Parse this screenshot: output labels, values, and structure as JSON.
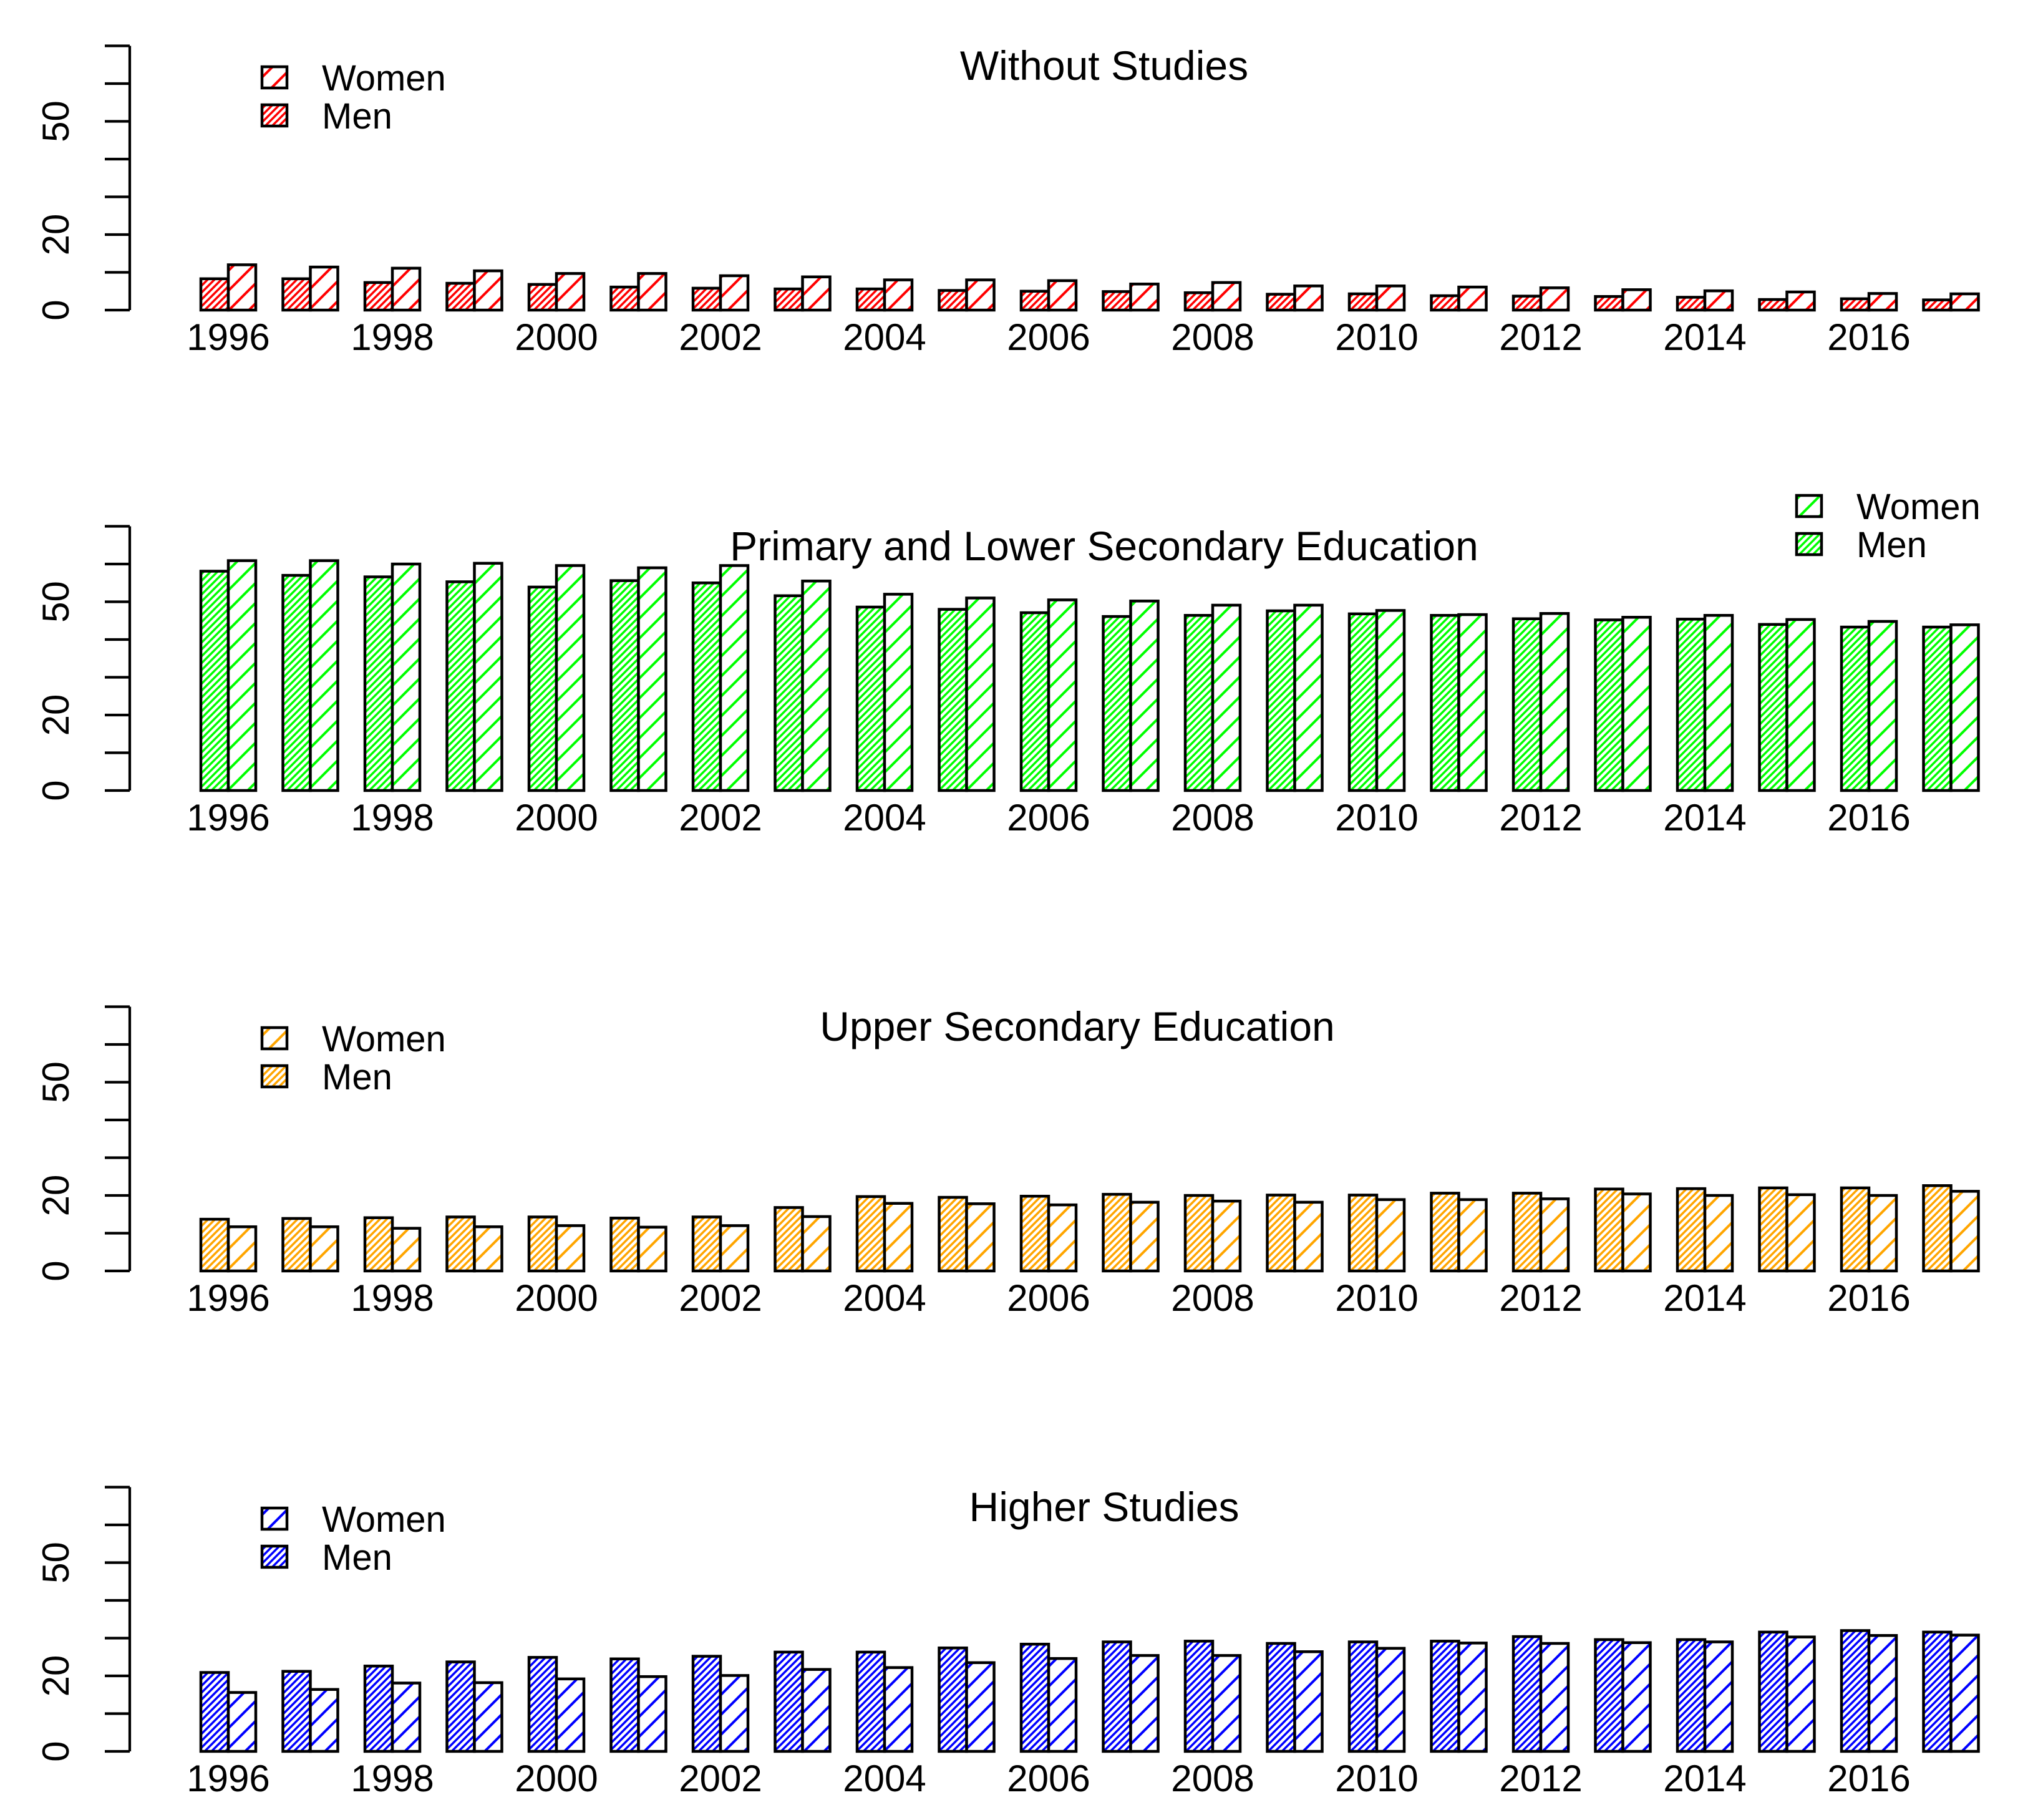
{
  "chart_data": [
    {
      "type": "bar",
      "title": "Without Studies",
      "fill_color": "#FF0000",
      "legend_position": "top-left",
      "categories": [
        1996,
        1997,
        1998,
        1999,
        2000,
        2001,
        2002,
        2003,
        2004,
        2005,
        2006,
        2007,
        2008,
        2009,
        2010,
        2011,
        2012,
        2013,
        2014,
        2015,
        2016,
        2017
      ],
      "x_tick_labels": [
        "1996",
        "1998",
        "2000",
        "2002",
        "2004",
        "2006",
        "2008",
        "2010",
        "2012",
        "2014",
        "2016"
      ],
      "y_tick_labels": [
        "0",
        "20",
        "50"
      ],
      "ylim": [
        0,
        70
      ],
      "series": [
        {
          "name": "Men",
          "values": [
            8.3,
            8.3,
            7.3,
            7.1,
            6.8,
            6.1,
            5.8,
            5.6,
            5.6,
            5.2,
            5.0,
            4.9,
            4.6,
            4.2,
            4.3,
            3.8,
            3.7,
            3.6,
            3.4,
            2.8,
            3.0,
            2.7
          ]
        },
        {
          "name": "Women",
          "values": [
            12.0,
            11.4,
            11.1,
            10.4,
            9.7,
            9.7,
            9.1,
            8.8,
            8.0,
            8.0,
            7.8,
            6.9,
            7.3,
            6.4,
            6.4,
            6.1,
            5.9,
            5.4,
            5.1,
            4.8,
            4.4,
            4.3
          ]
        }
      ],
      "legend": [
        "Women",
        "Men"
      ]
    },
    {
      "type": "bar",
      "title": "Primary and Lower Secondary Education",
      "fill_color": "#00FF00",
      "legend_position": "top-right",
      "categories": [
        1996,
        1997,
        1998,
        1999,
        2000,
        2001,
        2002,
        2003,
        2004,
        2005,
        2006,
        2007,
        2008,
        2009,
        2010,
        2011,
        2012,
        2013,
        2014,
        2015,
        2016,
        2017
      ],
      "x_tick_labels": [
        "1996",
        "1998",
        "2000",
        "2002",
        "2004",
        "2006",
        "2008",
        "2010",
        "2012",
        "2014",
        "2016"
      ],
      "y_tick_labels": [
        "0",
        "20",
        "50"
      ],
      "ylim": [
        0,
        70
      ],
      "series": [
        {
          "name": "Men",
          "values": [
            58.1,
            57.0,
            56.6,
            55.3,
            53.9,
            55.6,
            55.0,
            51.6,
            48.6,
            48.0,
            47.1,
            46.1,
            46.4,
            47.6,
            46.8,
            46.4,
            45.5,
            45.2,
            45.4,
            44.0,
            43.3,
            43.3
          ]
        },
        {
          "name": "Women",
          "values": [
            60.9,
            60.9,
            60.0,
            60.2,
            59.6,
            59.0,
            59.6,
            55.5,
            52.0,
            51.0,
            50.5,
            50.2,
            49.1,
            49.1,
            47.7,
            46.6,
            46.9,
            45.9,
            46.4,
            45.3,
            44.8,
            43.9
          ]
        }
      ],
      "legend": [
        "Women",
        "Men"
      ]
    },
    {
      "type": "bar",
      "title": "Upper Secondary Education",
      "fill_color": "#FFA500",
      "legend_position": "top-left",
      "categories": [
        1996,
        1997,
        1998,
        1999,
        2000,
        2001,
        2002,
        2003,
        2004,
        2005,
        2006,
        2007,
        2008,
        2009,
        2010,
        2011,
        2012,
        2013,
        2014,
        2015,
        2016,
        2017
      ],
      "x_tick_labels": [
        "1996",
        "1998",
        "2000",
        "2002",
        "2004",
        "2006",
        "2008",
        "2010",
        "2012",
        "2014",
        "2016"
      ],
      "y_tick_labels": [
        "0",
        "20",
        "50"
      ],
      "ylim": [
        0,
        70
      ],
      "series": [
        {
          "name": "Men",
          "values": [
            13.7,
            13.9,
            14.1,
            14.3,
            14.3,
            14.0,
            14.3,
            16.8,
            19.7,
            19.5,
            19.8,
            20.3,
            20.0,
            20.1,
            20.1,
            20.6,
            20.6,
            21.7,
            21.8,
            22.0,
            22.0,
            22.6
          ]
        },
        {
          "name": "Women",
          "values": [
            11.7,
            11.7,
            11.3,
            11.7,
            12.0,
            11.6,
            12.0,
            14.4,
            17.9,
            17.8,
            17.5,
            18.2,
            18.5,
            18.2,
            18.9,
            18.9,
            19.1,
            20.4,
            20.0,
            20.2,
            20.0,
            21.1
          ]
        }
      ],
      "legend": [
        "Women",
        "Men"
      ]
    },
    {
      "type": "bar",
      "title": "Higher Studies",
      "fill_color": "#0000FF",
      "legend_position": "top-left",
      "categories": [
        1996,
        1997,
        1998,
        1999,
        2000,
        2001,
        2002,
        2003,
        2004,
        2005,
        2006,
        2007,
        2008,
        2009,
        2010,
        2011,
        2012,
        2013,
        2014,
        2015,
        2016,
        2017
      ],
      "x_tick_labels": [
        "1996",
        "1998",
        "2000",
        "2002",
        "2004",
        "2006",
        "2008",
        "2010",
        "2012",
        "2014",
        "2016"
      ],
      "y_tick_labels": [
        "0",
        "20",
        "50"
      ],
      "ylim": [
        0,
        70
      ],
      "series": [
        {
          "name": "Men",
          "values": [
            20.9,
            21.2,
            22.6,
            23.7,
            24.9,
            24.5,
            25.2,
            26.3,
            26.3,
            27.4,
            28.4,
            29.0,
            29.2,
            28.6,
            29.0,
            29.2,
            30.4,
            29.6,
            29.6,
            31.6,
            32.0,
            31.6
          ]
        },
        {
          "name": "Women",
          "values": [
            15.6,
            16.4,
            18.1,
            18.2,
            19.2,
            19.8,
            20.1,
            21.7,
            22.2,
            23.5,
            24.6,
            25.4,
            25.4,
            26.4,
            27.3,
            28.7,
            28.6,
            28.8,
            29.0,
            30.3,
            30.7,
            30.8
          ]
        }
      ],
      "legend": [
        "Women",
        "Men"
      ]
    }
  ]
}
